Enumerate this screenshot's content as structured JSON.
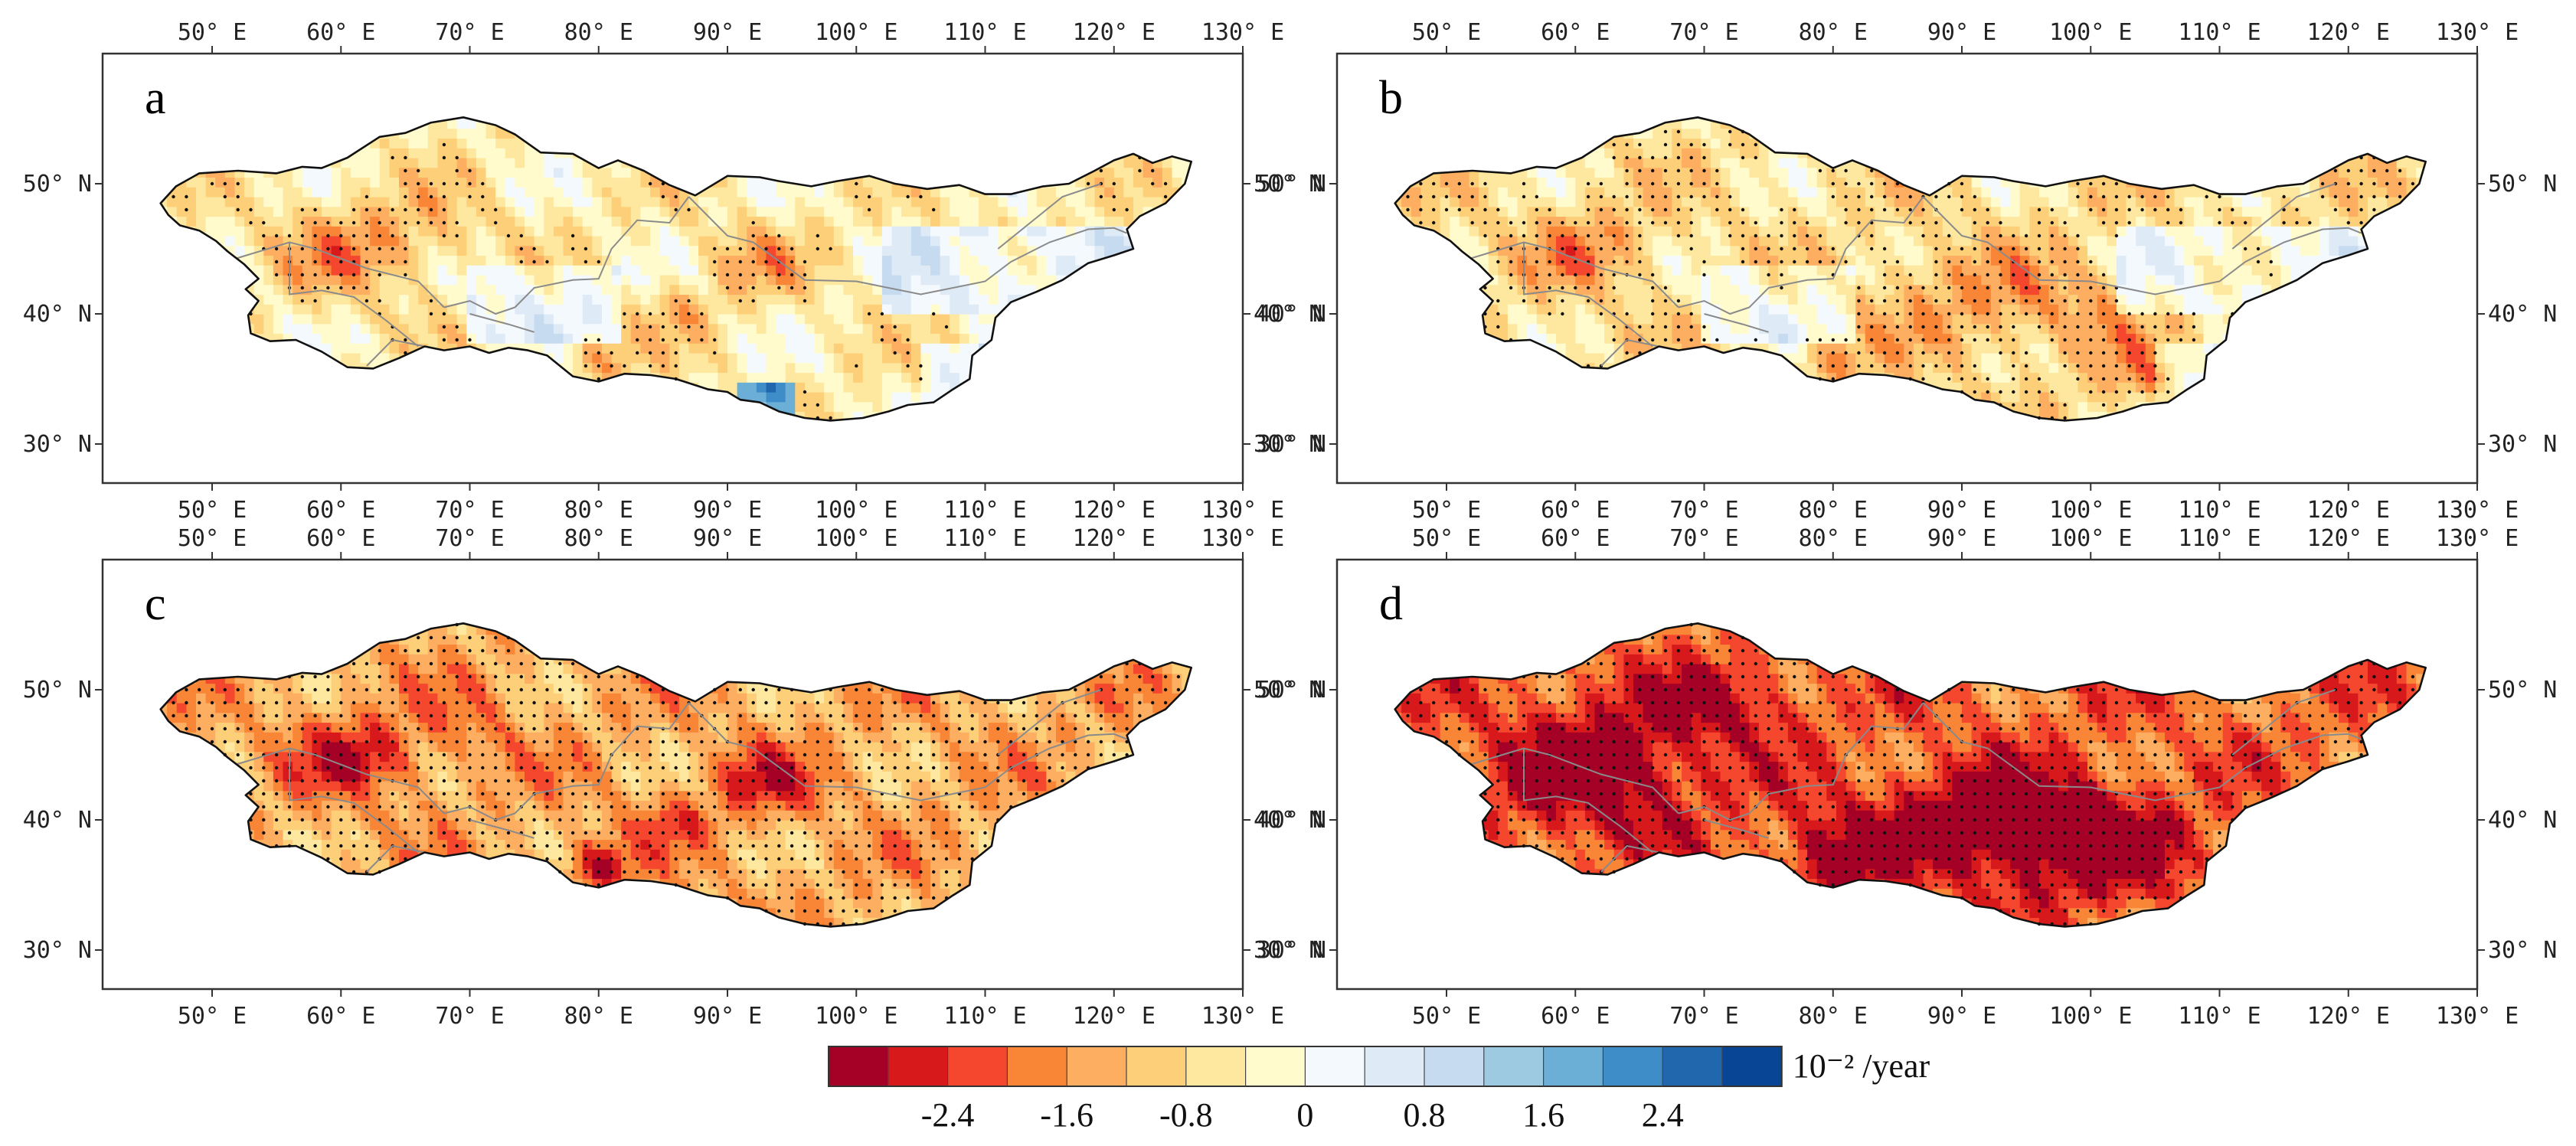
{
  "panels": [
    {
      "label": "a",
      "intensity": 0.22
    },
    {
      "label": "b",
      "intensity": 0.32
    },
    {
      "label": "c",
      "intensity": 0.62
    },
    {
      "label": "d",
      "intensity": 0.88
    }
  ],
  "lon_ticks": [
    "50° E",
    "60° E",
    "70° E",
    "80° E",
    "90° E",
    "100° E",
    "110° E",
    "120° E",
    "130° E"
  ],
  "lat_ticks": [
    "50° N",
    "40° N",
    "30° N"
  ],
  "colorbar": {
    "colors": [
      "#a50026",
      "#d7191c",
      "#f4472d",
      "#f98536",
      "#fdae61",
      "#fdcf78",
      "#fee8a0",
      "#fffbcc",
      "#f4f9fe",
      "#deebf7",
      "#c6dbef",
      "#9ecae1",
      "#6baed6",
      "#3f8dc8",
      "#2167ad",
      "#084594"
    ],
    "labels": [
      "-2.4",
      "-1.6",
      "-0.8",
      "0",
      "0.8",
      "1.6",
      "2.4"
    ],
    "unit": "10⁻² /year"
  }
}
